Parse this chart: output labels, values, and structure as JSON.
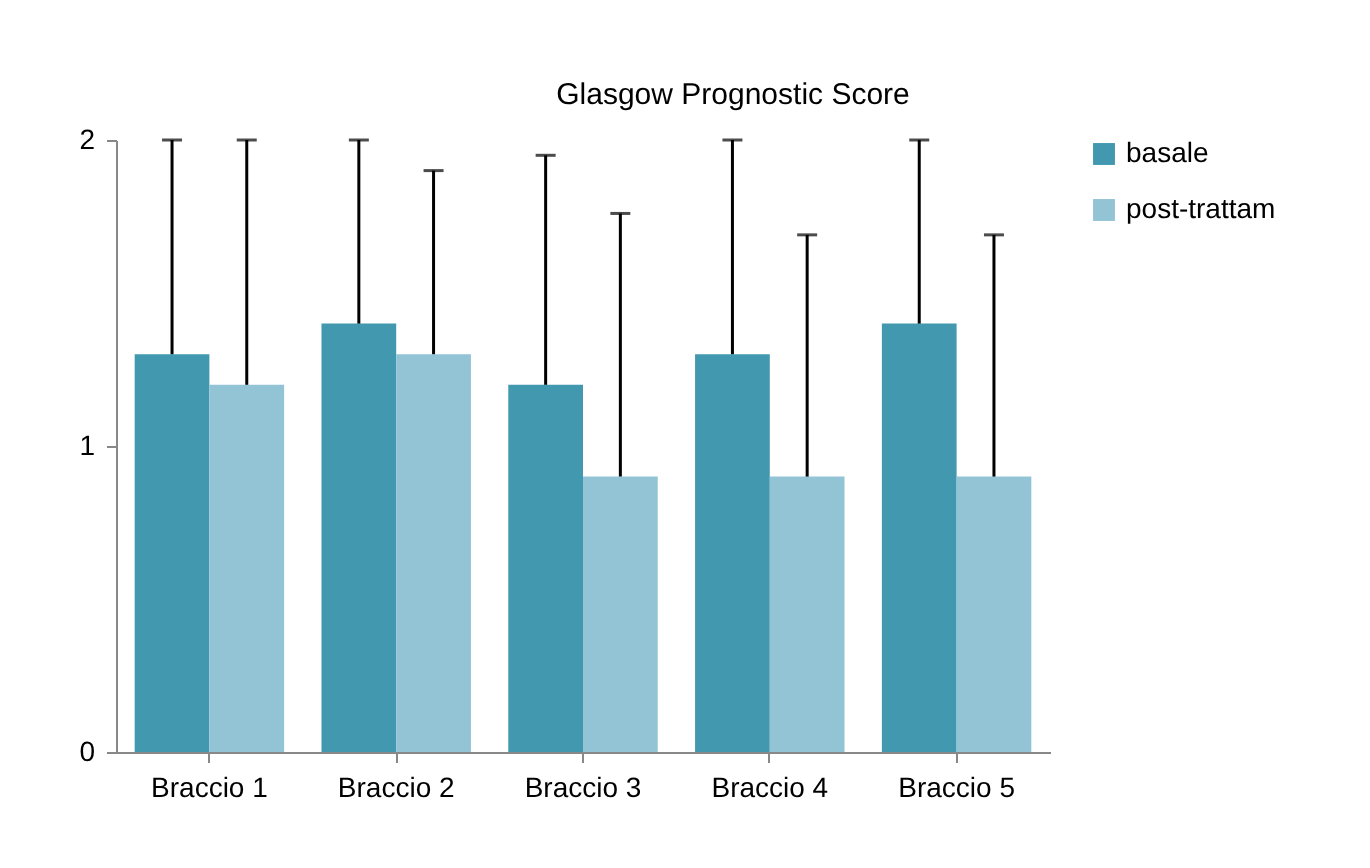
{
  "chart_data": {
    "type": "bar",
    "title": "Glasgow Prognostic Score",
    "categories": [
      "Braccio 1",
      "Braccio 2",
      "Braccio 3",
      "Braccio 4",
      "Braccio 5"
    ],
    "series": [
      {
        "name": "basale",
        "color": "#4198af",
        "values": [
          1.3,
          1.4,
          1.2,
          1.3,
          1.4
        ],
        "errors": [
          [
            1.3,
            2
          ],
          [
            1.4,
            2
          ],
          [
            1.2,
            1.95
          ],
          [
            1.3,
            2
          ],
          [
            1.4,
            2
          ]
        ]
      },
      {
        "name": "post-trattam",
        "color": "#93c4d6",
        "values": [
          1.2,
          1.3,
          0.9,
          0.9,
          0.9
        ],
        "errors": [
          [
            1.2,
            2
          ],
          [
            1.3,
            1.9
          ],
          [
            0.9,
            1.76
          ],
          [
            0.9,
            1.69
          ],
          [
            0.9,
            1.69
          ]
        ]
      }
    ],
    "ylim": [
      0,
      2
    ],
    "yticks": [
      0,
      1,
      2
    ],
    "grid": false,
    "legend": "right"
  }
}
